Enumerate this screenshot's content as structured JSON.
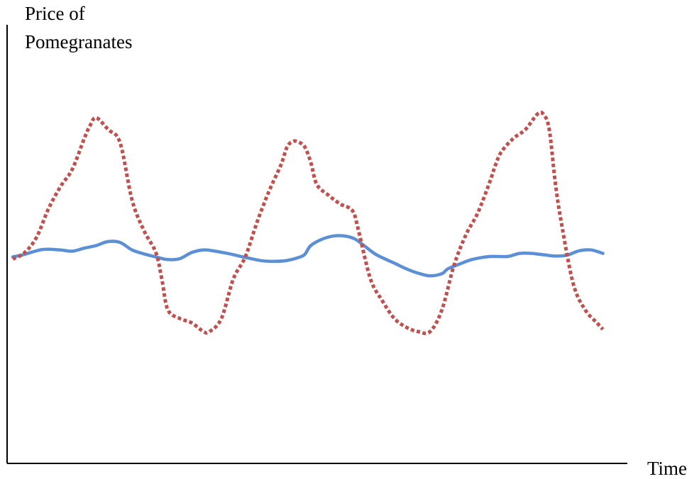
{
  "chart_data": {
    "type": "line",
    "title": "",
    "ylabel_lines": [
      "Price of",
      "Pomegranates"
    ],
    "xlabel": "Time",
    "xlim": [
      0,
      100
    ],
    "ylim": [
      0,
      100
    ],
    "grid": false,
    "legend": "none",
    "series": [
      {
        "style": "solid",
        "color": "#5b8fd6",
        "points": [
          [
            0,
            47
          ],
          [
            2,
            47.6
          ],
          [
            5,
            48.7
          ],
          [
            8,
            48.6
          ],
          [
            10,
            48.3
          ],
          [
            12,
            49
          ],
          [
            14,
            49.6
          ],
          [
            16,
            50.5
          ],
          [
            18,
            50.3
          ],
          [
            20,
            48.6
          ],
          [
            22,
            47.7
          ],
          [
            24,
            47
          ],
          [
            26,
            46.4
          ],
          [
            28,
            46.6
          ],
          [
            30,
            48
          ],
          [
            32,
            48.6
          ],
          [
            34,
            48.3
          ],
          [
            36,
            47.8
          ],
          [
            38,
            47.2
          ],
          [
            40,
            46.6
          ],
          [
            42,
            46.1
          ],
          [
            44,
            46
          ],
          [
            46,
            46.2
          ],
          [
            48,
            46.9
          ],
          [
            49,
            47.6
          ],
          [
            50,
            49.6
          ],
          [
            52,
            51.1
          ],
          [
            54,
            51.8
          ],
          [
            56,
            51.7
          ],
          [
            57.5,
            51
          ],
          [
            59,
            49.5
          ],
          [
            61,
            47.5
          ],
          [
            64,
            45.6
          ],
          [
            66,
            44.3
          ],
          [
            68,
            43.3
          ],
          [
            70,
            42.7
          ],
          [
            72,
            43.2
          ],
          [
            73,
            44.3
          ],
          [
            75,
            45.4
          ],
          [
            77,
            46.4
          ],
          [
            80,
            47.1
          ],
          [
            83,
            47.1
          ],
          [
            85,
            47.8
          ],
          [
            87,
            47.8
          ],
          [
            89,
            47.5
          ],
          [
            91,
            47.2
          ],
          [
            93,
            47.4
          ],
          [
            95,
            48.4
          ],
          [
            97,
            48.6
          ],
          [
            99,
            47.8
          ]
        ]
      },
      {
        "style": "dotted",
        "color": "#c0504d",
        "points": [
          [
            0,
            46.5
          ],
          [
            2,
            48
          ],
          [
            4,
            51.5
          ],
          [
            6,
            58
          ],
          [
            8,
            63
          ],
          [
            10,
            67
          ],
          [
            12,
            74
          ],
          [
            13,
            77
          ],
          [
            14,
            78.7
          ],
          [
            16,
            76
          ],
          [
            18,
            73
          ],
          [
            20,
            60
          ],
          [
            22,
            53
          ],
          [
            24,
            48
          ],
          [
            25,
            42
          ],
          [
            26,
            35
          ],
          [
            28,
            33
          ],
          [
            30,
            32
          ],
          [
            32,
            30
          ],
          [
            33,
            30
          ],
          [
            35,
            33
          ],
          [
            37,
            42
          ],
          [
            39,
            47
          ],
          [
            41,
            55
          ],
          [
            43,
            62
          ],
          [
            45,
            68
          ],
          [
            46,
            72
          ],
          [
            47,
            73.3
          ],
          [
            48,
            73.1
          ],
          [
            49,
            72
          ],
          [
            50,
            68.5
          ],
          [
            51,
            63.5
          ],
          [
            53,
            61
          ],
          [
            55,
            59
          ],
          [
            57,
            57.5
          ],
          [
            58,
            53
          ],
          [
            60,
            42
          ],
          [
            62,
            37
          ],
          [
            64,
            33
          ],
          [
            66,
            31
          ],
          [
            68,
            30
          ],
          [
            70,
            30
          ],
          [
            72,
            35
          ],
          [
            74,
            45
          ],
          [
            76,
            52
          ],
          [
            78,
            57
          ],
          [
            80,
            64
          ],
          [
            81,
            68
          ],
          [
            82,
            71
          ],
          [
            84,
            74
          ],
          [
            86,
            76
          ],
          [
            88,
            79.5
          ],
          [
            89,
            79.5
          ],
          [
            90,
            76
          ],
          [
            91,
            64
          ],
          [
            92,
            55
          ],
          [
            94,
            41
          ],
          [
            96,
            35
          ],
          [
            98,
            32
          ],
          [
            99,
            30.5
          ]
        ]
      }
    ]
  }
}
